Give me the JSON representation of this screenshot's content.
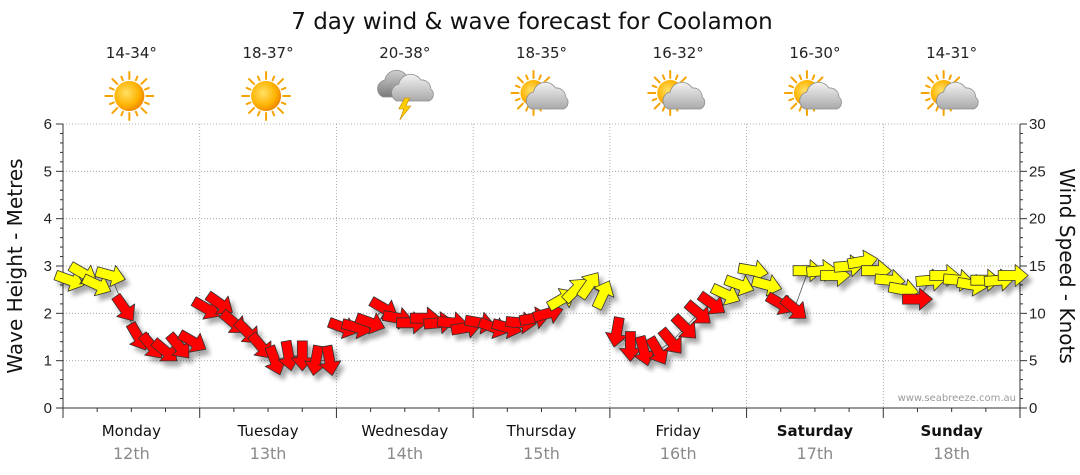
{
  "chart_data": {
    "type": "line",
    "title": "7 day wind & wave forecast for Coolamon",
    "location": "Coolamon",
    "ylabel_left": "Wave Height - Metres",
    "ylabel_right": "Wind Speed - Knots",
    "y_left_range": [
      0,
      6
    ],
    "y_left_ticks": [
      "0",
      "1",
      "2",
      "3",
      "4",
      "5",
      "6"
    ],
    "y_right_range": [
      0,
      30
    ],
    "y_right_ticks": [
      "0",
      "5",
      "10",
      "15",
      "20",
      "25",
      "30"
    ],
    "grid": true,
    "watermark": "www.seabreeze.com.au",
    "days": [
      {
        "day": "Monday",
        "date": "12th",
        "temp": "14-34°",
        "weather": "sunny-icon",
        "bold": false
      },
      {
        "day": "Tuesday",
        "date": "13th",
        "temp": "18-37°",
        "weather": "sunny-icon",
        "bold": false
      },
      {
        "day": "Wednesday",
        "date": "14th",
        "temp": "20-38°",
        "weather": "storm-icon",
        "bold": false
      },
      {
        "day": "Thursday",
        "date": "15th",
        "temp": "18-35°",
        "weather": "partly-cloudy-icon",
        "bold": false
      },
      {
        "day": "Friday",
        "date": "16th",
        "temp": "16-32°",
        "weather": "partly-cloudy-icon",
        "bold": false
      },
      {
        "day": "Saturday",
        "date": "17th",
        "temp": "16-30°",
        "weather": "partly-cloudy-icon",
        "bold": true
      },
      {
        "day": "Sunday",
        "date": "18th",
        "temp": "14-31°",
        "weather": "partly-cloudy-icon",
        "bold": true
      }
    ],
    "wind_series": [
      {
        "name": "Monday",
        "day_start": 0,
        "points": [
          {
            "t": 0.05,
            "kts": 13.5,
            "dir": 290,
            "color": "#ffff00"
          },
          {
            "t": 0.15,
            "kts": 14.2,
            "dir": 300,
            "color": "#ffff00"
          },
          {
            "t": 0.25,
            "kts": 13.0,
            "dir": 295,
            "color": "#ffff00"
          },
          {
            "t": 0.35,
            "kts": 14.0,
            "dir": 285,
            "color": "#ffff00"
          },
          {
            "t": 0.45,
            "kts": 10.5,
            "dir": 325,
            "color": "#ff0000"
          },
          {
            "t": 0.55,
            "kts": 7.5,
            "dir": 330,
            "color": "#ff0000"
          },
          {
            "t": 0.65,
            "kts": 6.5,
            "dir": 320,
            "color": "#ff0000"
          },
          {
            "t": 0.75,
            "kts": 6.0,
            "dir": 310,
            "color": "#ff0000"
          },
          {
            "t": 0.85,
            "kts": 6.5,
            "dir": 320,
            "color": "#ff0000"
          },
          {
            "t": 0.95,
            "kts": 7.0,
            "dir": 300,
            "color": "#ff0000"
          }
        ]
      },
      {
        "name": "Tuesday",
        "day_start": 1,
        "points": [
          {
            "t": 0.05,
            "kts": 10.5,
            "dir": 300,
            "color": "#ff0000"
          },
          {
            "t": 0.15,
            "kts": 11.0,
            "dir": 305,
            "color": "#ff0000"
          },
          {
            "t": 0.25,
            "kts": 9.0,
            "dir": 310,
            "color": "#ff0000"
          },
          {
            "t": 0.35,
            "kts": 8.0,
            "dir": 315,
            "color": "#ff0000"
          },
          {
            "t": 0.45,
            "kts": 6.5,
            "dir": 320,
            "color": "#ff0000"
          },
          {
            "t": 0.55,
            "kts": 5.0,
            "dir": 340,
            "color": "#ff0000"
          },
          {
            "t": 0.65,
            "kts": 5.5,
            "dir": 350,
            "color": "#ff0000"
          },
          {
            "t": 0.75,
            "kts": 5.5,
            "dir": 0,
            "color": "#ff0000"
          },
          {
            "t": 0.85,
            "kts": 5.0,
            "dir": 10,
            "color": "#ff0000"
          },
          {
            "t": 0.95,
            "kts": 5.0,
            "dir": 350,
            "color": "#ff0000"
          }
        ]
      },
      {
        "name": "Wednesday",
        "day_start": 2,
        "points": [
          {
            "t": 0.05,
            "kts": 8.5,
            "dir": 290,
            "color": "#ff0000"
          },
          {
            "t": 0.15,
            "kts": 8.5,
            "dir": 285,
            "color": "#ff0000"
          },
          {
            "t": 0.25,
            "kts": 9.0,
            "dir": 290,
            "color": "#ff0000"
          },
          {
            "t": 0.35,
            "kts": 10.5,
            "dir": 300,
            "color": "#ff0000"
          },
          {
            "t": 0.45,
            "kts": 9.5,
            "dir": 280,
            "color": "#ff0000"
          },
          {
            "t": 0.55,
            "kts": 9.0,
            "dir": 270,
            "color": "#ff0000"
          },
          {
            "t": 0.65,
            "kts": 9.5,
            "dir": 270,
            "color": "#ff0000"
          },
          {
            "t": 0.75,
            "kts": 9.0,
            "dir": 265,
            "color": "#ff0000"
          },
          {
            "t": 0.85,
            "kts": 9.0,
            "dir": 275,
            "color": "#ff0000"
          },
          {
            "t": 0.95,
            "kts": 8.5,
            "dir": 260,
            "color": "#ff0000"
          }
        ]
      },
      {
        "name": "Thursday",
        "day_start": 3,
        "points": [
          {
            "t": 0.05,
            "kts": 9.0,
            "dir": 280,
            "color": "#ff0000"
          },
          {
            "t": 0.15,
            "kts": 8.5,
            "dir": 290,
            "color": "#ff0000"
          },
          {
            "t": 0.25,
            "kts": 8.5,
            "dir": 285,
            "color": "#ff0000"
          },
          {
            "t": 0.35,
            "kts": 9.0,
            "dir": 275,
            "color": "#ff0000"
          },
          {
            "t": 0.45,
            "kts": 9.5,
            "dir": 260,
            "color": "#ff0000"
          },
          {
            "t": 0.55,
            "kts": 10.0,
            "dir": 255,
            "color": "#ff0000"
          },
          {
            "t": 0.65,
            "kts": 11.5,
            "dir": 240,
            "color": "#ffff00"
          },
          {
            "t": 0.75,
            "kts": 12.5,
            "dir": 225,
            "color": "#ffff00"
          },
          {
            "t": 0.85,
            "kts": 13.0,
            "dir": 215,
            "color": "#ffff00"
          },
          {
            "t": 0.95,
            "kts": 12.0,
            "dir": 205,
            "color": "#ffff00"
          }
        ]
      },
      {
        "name": "Friday",
        "day_start": 4,
        "points": [
          {
            "t": 0.05,
            "kts": 8.0,
            "dir": 10,
            "color": "#ff0000"
          },
          {
            "t": 0.15,
            "kts": 6.5,
            "dir": 0,
            "color": "#ff0000"
          },
          {
            "t": 0.25,
            "kts": 6.0,
            "dir": 345,
            "color": "#ff0000"
          },
          {
            "t": 0.35,
            "kts": 6.0,
            "dir": 330,
            "color": "#ff0000"
          },
          {
            "t": 0.45,
            "kts": 7.0,
            "dir": 320,
            "color": "#ff0000"
          },
          {
            "t": 0.55,
            "kts": 8.5,
            "dir": 315,
            "color": "#ff0000"
          },
          {
            "t": 0.65,
            "kts": 10.0,
            "dir": 310,
            "color": "#ff0000"
          },
          {
            "t": 0.75,
            "kts": 11.0,
            "dir": 305,
            "color": "#ff0000"
          },
          {
            "t": 0.85,
            "kts": 12.0,
            "dir": 295,
            "color": "#ffff00"
          },
          {
            "t": 0.95,
            "kts": 13.0,
            "dir": 290,
            "color": "#ffff00"
          }
        ]
      },
      {
        "name": "Saturday",
        "day_start": 5,
        "points": [
          {
            "t": 0.05,
            "kts": 14.5,
            "dir": 280,
            "color": "#ffff00"
          },
          {
            "t": 0.15,
            "kts": 13.0,
            "dir": 285,
            "color": "#ffff00"
          },
          {
            "t": 0.25,
            "kts": 11.0,
            "dir": 300,
            "color": "#ff0000"
          },
          {
            "t": 0.35,
            "kts": 10.5,
            "dir": 310,
            "color": "#ff0000"
          },
          {
            "t": 0.45,
            "kts": 14.5,
            "dir": 270,
            "color": "#ffff00"
          },
          {
            "t": 0.55,
            "kts": 14.5,
            "dir": 265,
            "color": "#ffff00"
          },
          {
            "t": 0.65,
            "kts": 14.0,
            "dir": 270,
            "color": "#ffff00"
          },
          {
            "t": 0.75,
            "kts": 15.0,
            "dir": 265,
            "color": "#ffff00"
          },
          {
            "t": 0.85,
            "kts": 15.5,
            "dir": 260,
            "color": "#ffff00"
          },
          {
            "t": 0.95,
            "kts": 14.5,
            "dir": 270,
            "color": "#ffff00"
          }
        ]
      },
      {
        "name": "Sunday",
        "day_start": 6,
        "points": [
          {
            "t": 0.05,
            "kts": 13.5,
            "dir": 275,
            "color": "#ffff00"
          },
          {
            "t": 0.15,
            "kts": 12.5,
            "dir": 280,
            "color": "#ffff00"
          },
          {
            "t": 0.25,
            "kts": 11.5,
            "dir": 270,
            "color": "#ff0000"
          },
          {
            "t": 0.35,
            "kts": 13.5,
            "dir": 265,
            "color": "#ffff00"
          },
          {
            "t": 0.45,
            "kts": 14.0,
            "dir": 270,
            "color": "#ffff00"
          },
          {
            "t": 0.55,
            "kts": 13.5,
            "dir": 275,
            "color": "#ffff00"
          },
          {
            "t": 0.65,
            "kts": 13.0,
            "dir": 280,
            "color": "#ffff00"
          },
          {
            "t": 0.75,
            "kts": 13.5,
            "dir": 270,
            "color": "#ffff00"
          },
          {
            "t": 0.85,
            "kts": 13.5,
            "dir": 265,
            "color": "#ffff00"
          },
          {
            "t": 0.95,
            "kts": 14.0,
            "dir": 270,
            "color": "#ffff00"
          }
        ]
      }
    ]
  }
}
